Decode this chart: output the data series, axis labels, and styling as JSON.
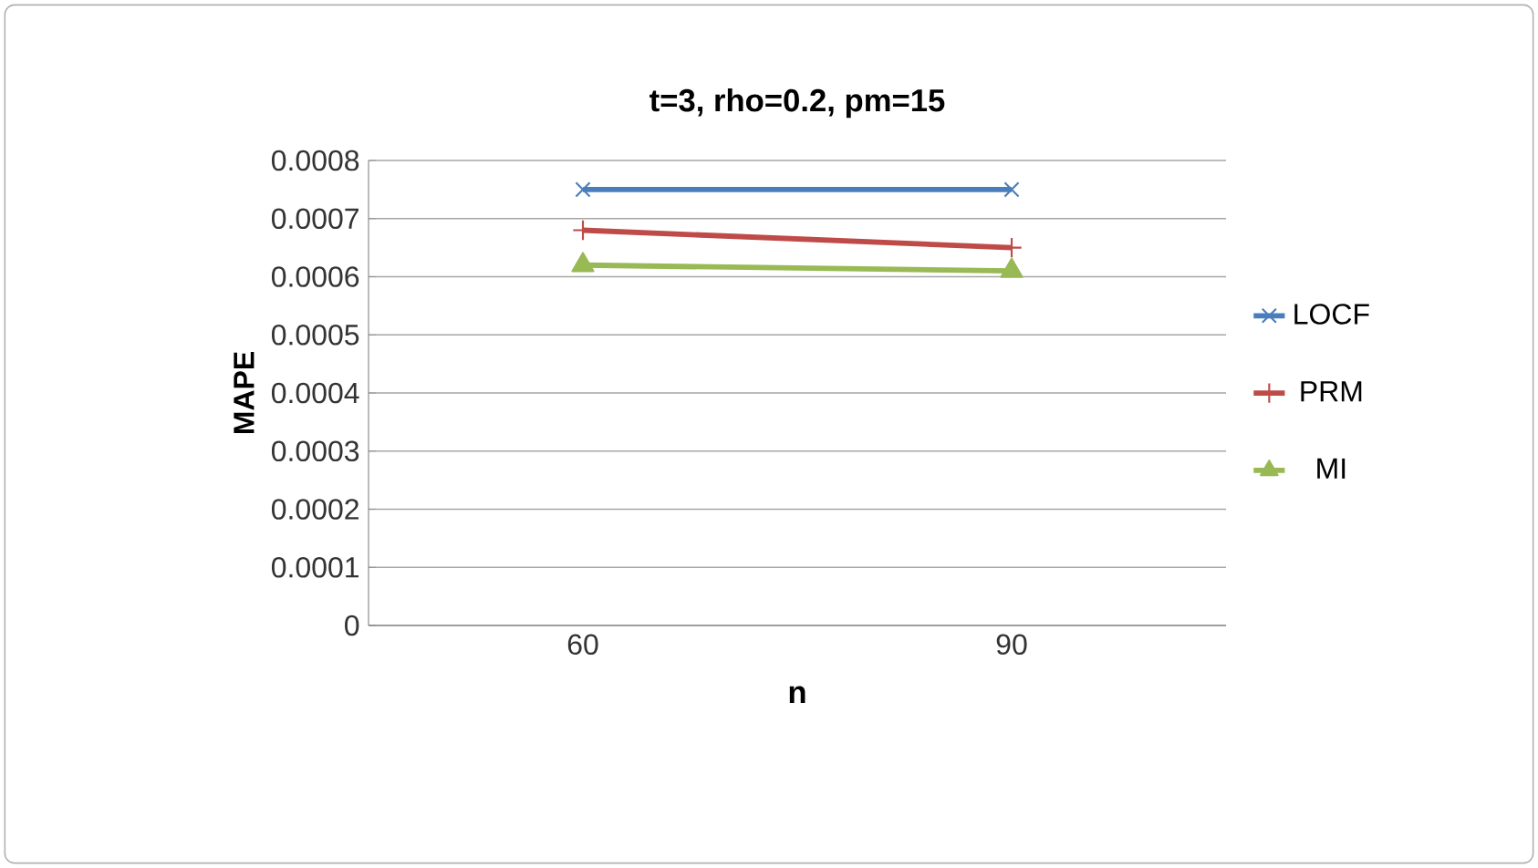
{
  "chart_data": {
    "type": "line",
    "title": "t=3, rho=0.2, pm=15",
    "xlabel": "n",
    "ylabel": "MAPE",
    "categories": [
      "60",
      "90"
    ],
    "series": [
      {
        "name": "LOCF",
        "color": "#4a7ebb",
        "marker": "cross",
        "values": [
          0.00075,
          0.00075
        ]
      },
      {
        "name": "PRM",
        "color": "#be4b48",
        "marker": "plus",
        "values": [
          0.00068,
          0.00065
        ]
      },
      {
        "name": "MI",
        "color": "#98b954",
        "marker": "triangle",
        "values": [
          0.00062,
          0.00061
        ]
      }
    ],
    "ylim": [
      0,
      0.0008
    ],
    "yticks": [
      0,
      0.0001,
      0.0002,
      0.0003,
      0.0004,
      0.0005,
      0.0006,
      0.0007,
      0.0008
    ],
    "grid": "y",
    "legend": "right"
  }
}
